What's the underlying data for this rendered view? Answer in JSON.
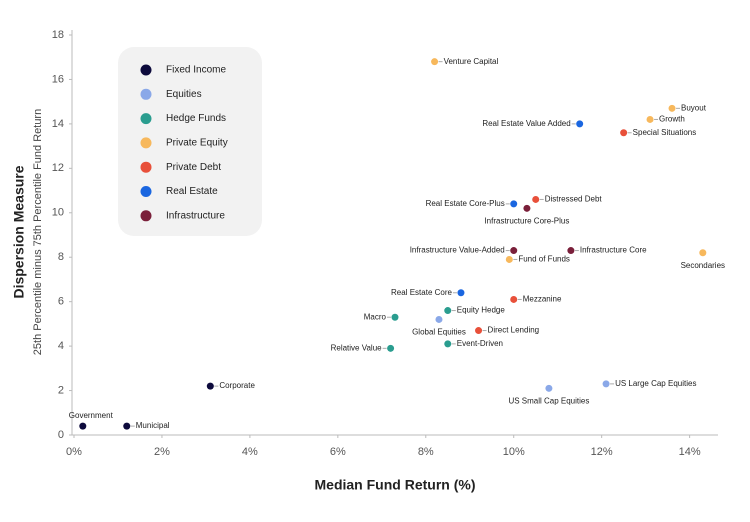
{
  "chart_data": {
    "type": "scatter",
    "y_title": "Dispersion Measure",
    "y_subtitle": "25th Percentile minus 75th Percentile Fund Return",
    "x_title": "Median Fund Return (%)",
    "xlim": [
      0,
      14.6
    ],
    "ylim": [
      0,
      18
    ],
    "xticks": [
      {
        "value": 0,
        "label": "0%"
      },
      {
        "value": 2,
        "label": "2%"
      },
      {
        "value": 4,
        "label": "4%"
      },
      {
        "value": 6,
        "label": "6%"
      },
      {
        "value": 8,
        "label": "8%"
      },
      {
        "value": 10,
        "label": "10%"
      },
      {
        "value": 12,
        "label": "12%"
      },
      {
        "value": 14,
        "label": "14%"
      }
    ],
    "yticks": [
      0,
      2,
      4,
      6,
      8,
      10,
      12,
      14,
      16,
      18
    ],
    "grid": false,
    "legend": "top-left",
    "series": [
      {
        "name": "Fixed Income",
        "color": "#0d0a3c",
        "labels": [
          "Government",
          "Municipal",
          "Corporate"
        ],
        "x": [
          0.2,
          1.2,
          3.1
        ],
        "values": [
          0.4,
          0.4,
          2.2
        ]
      },
      {
        "name": "Equities",
        "color": "#8aa8e8",
        "labels": [
          "Global Equities",
          "US Small Cap Equities",
          "US Large Cap Equities"
        ],
        "x": [
          8.3,
          10.8,
          12.1
        ],
        "values": [
          5.2,
          2.1,
          2.3
        ]
      },
      {
        "name": "Hedge Funds",
        "color": "#2a9d8f",
        "labels": [
          "Equity Hedge",
          "Macro",
          "Event-Driven",
          "Relative Value"
        ],
        "x": [
          8.5,
          7.3,
          8.5,
          7.2
        ],
        "values": [
          5.6,
          5.3,
          4.1,
          3.9
        ]
      },
      {
        "name": "Private Equity",
        "color": "#f7b85c",
        "labels": [
          "Venture Capital",
          "Buyout",
          "Growth",
          "Fund of Funds",
          "Secondaries"
        ],
        "x": [
          8.2,
          13.6,
          13.1,
          9.9,
          14.3
        ],
        "values": [
          16.8,
          14.7,
          14.2,
          7.9,
          8.2
        ]
      },
      {
        "name": "Private Debt",
        "color": "#e8503a",
        "labels": [
          "Special Situations",
          "Distressed Debt",
          "Mezzanine",
          "Direct Lending"
        ],
        "x": [
          12.5,
          10.5,
          10.0,
          9.2
        ],
        "values": [
          13.6,
          10.6,
          6.1,
          4.7
        ]
      },
      {
        "name": "Real Estate",
        "color": "#1a66e0",
        "labels": [
          "Real Estate Value Added",
          "Real Estate Core-Plus",
          "Real Estate Core"
        ],
        "x": [
          11.5,
          10.0,
          8.8
        ],
        "values": [
          14.0,
          10.4,
          6.4
        ]
      },
      {
        "name": "Infrastructure",
        "color": "#7a1f3a",
        "labels": [
          "Infrastructure Core-Plus",
          "Infrastructure Value-Added",
          "Infrastructure Core"
        ],
        "x": [
          10.3,
          10.0,
          11.3
        ],
        "values": [
          10.2,
          8.3,
          8.3
        ]
      }
    ]
  }
}
